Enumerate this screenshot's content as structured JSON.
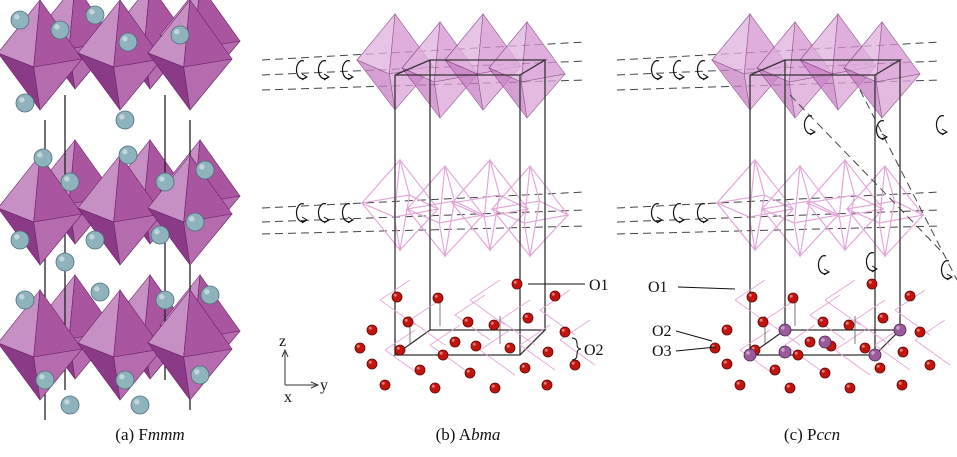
{
  "panels": [
    {
      "caption": {
        "prefix": "(a) F",
        "italic": "mmm"
      }
    },
    {
      "caption": {
        "prefix": "(b) A",
        "italic": "bma"
      },
      "labels": [
        "O1",
        "O2"
      ]
    },
    {
      "caption": {
        "prefix": "(c) P",
        "italic": "ccn"
      },
      "labels": [
        "O1",
        "O2",
        "O3"
      ]
    }
  ],
  "axes": {
    "z": "z",
    "y": "y",
    "x": "x"
  }
}
